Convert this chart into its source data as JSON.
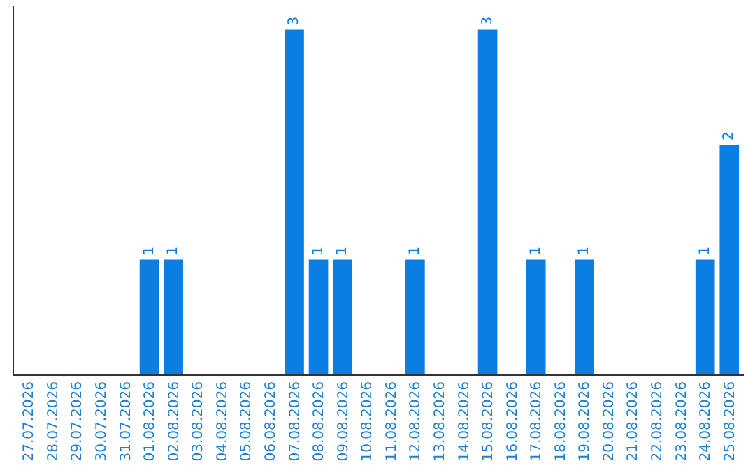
{
  "chart_data": {
    "type": "bar",
    "categories": [
      "27.07.2026",
      "28.07.2026",
      "29.07.2026",
      "30.07.2026",
      "31.07.2026",
      "01.08.2026",
      "02.08.2026",
      "03.08.2026",
      "04.08.2026",
      "05.08.2026",
      "06.08.2026",
      "07.08.2026",
      "08.08.2026",
      "09.08.2026",
      "10.08.2026",
      "11.08.2026",
      "12.08.2026",
      "13.08.2026",
      "14.08.2026",
      "15.08.2026",
      "16.08.2026",
      "17.08.2026",
      "18.08.2026",
      "19.08.2026",
      "20.08.2026",
      "21.08.2026",
      "22.08.2026",
      "23.08.2026",
      "24.08.2026",
      "25.08.2026"
    ],
    "values": [
      0,
      0,
      0,
      0,
      0,
      1,
      1,
      0,
      0,
      0,
      0,
      3,
      1,
      1,
      0,
      0,
      1,
      0,
      0,
      3,
      0,
      1,
      0,
      1,
      0,
      0,
      0,
      0,
      1,
      2
    ],
    "value_labels": [
      null,
      null,
      null,
      null,
      null,
      "1",
      "1",
      null,
      null,
      null,
      null,
      "3",
      "1",
      "1",
      null,
      null,
      "1",
      null,
      null,
      "3",
      null,
      "1",
      null,
      "1",
      null,
      null,
      null,
      null,
      "1",
      "2"
    ],
    "color": "#0a7ee3",
    "grid": false,
    "legend": false
  }
}
